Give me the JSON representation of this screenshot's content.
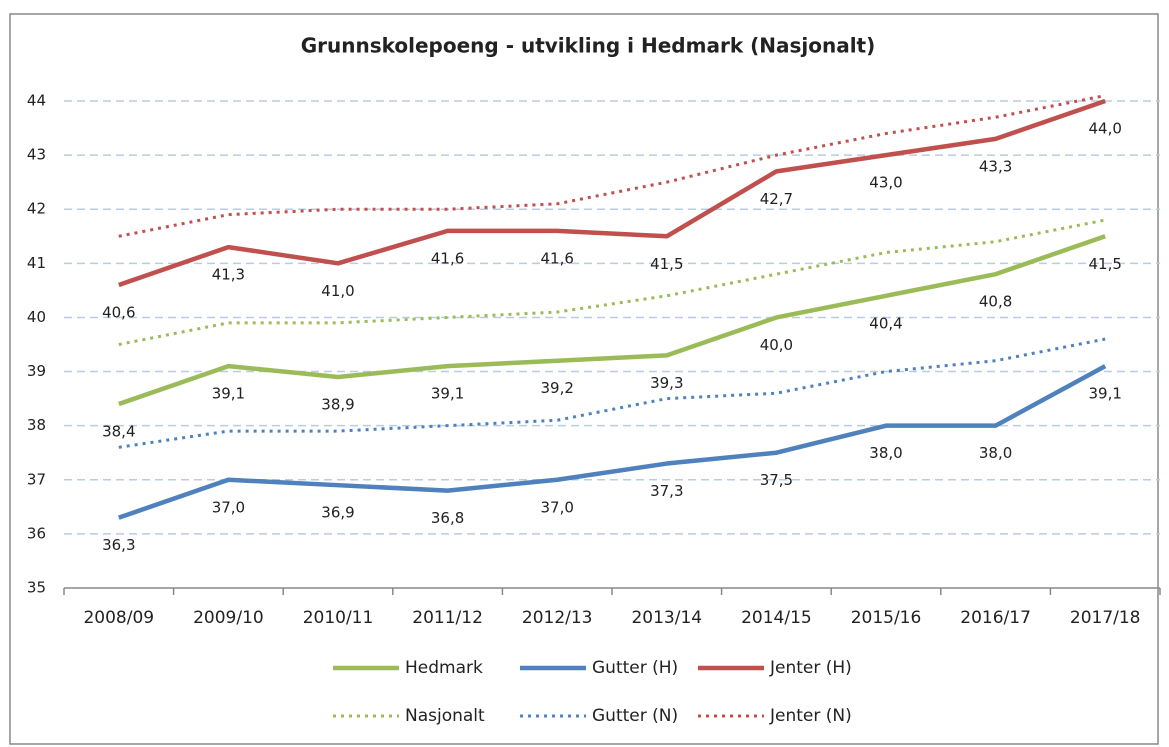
{
  "chart_data": {
    "type": "line",
    "title": "Grunnskolepoeng - utvikling i Hedmark (Nasjonalt)",
    "categories": [
      "2008/09",
      "2009/10",
      "2010/11",
      "2011/12",
      "2012/13",
      "2013/14",
      "2014/15",
      "2015/16",
      "2016/17",
      "2017/18"
    ],
    "ylim": [
      35,
      44
    ],
    "yticks": [
      35,
      36,
      37,
      38,
      39,
      40,
      41,
      42,
      43,
      44
    ],
    "grid": true,
    "legend": "bottom",
    "series": [
      {
        "name": "Hedmark",
        "color": "#9bbb59",
        "style": "solid",
        "values": [
          38.4,
          39.1,
          38.9,
          39.1,
          39.2,
          39.3,
          40.0,
          40.4,
          40.8,
          41.5
        ],
        "value_labels": [
          "38,4",
          "39,1",
          "38,9",
          "39,1",
          "39,2",
          "39,3",
          "40,0",
          "40,4",
          "40,8",
          "41,5"
        ]
      },
      {
        "name": "Gutter (H)",
        "color": "#4f81bd",
        "style": "solid",
        "values": [
          36.3,
          37.0,
          36.9,
          36.8,
          37.0,
          37.3,
          37.5,
          38.0,
          38.0,
          39.1
        ],
        "value_labels": [
          "36,3",
          "37,0",
          "36,9",
          "36,8",
          "37,0",
          "37,3",
          "37,5",
          "38,0",
          "38,0",
          "39,1"
        ]
      },
      {
        "name": "Jenter (H)",
        "color": "#c0504d",
        "style": "solid",
        "values": [
          40.6,
          41.3,
          41.0,
          41.6,
          41.6,
          41.5,
          42.7,
          43.0,
          43.3,
          44.0
        ],
        "value_labels": [
          "40,6",
          "41,3",
          "41,0",
          "41,6",
          "41,6",
          "41,5",
          "42,7",
          "43,0",
          "43,3",
          "44,0"
        ]
      },
      {
        "name": "Nasjonalt",
        "color": "#9bbb59",
        "style": "dotted",
        "values": [
          39.5,
          39.9,
          39.9,
          40.0,
          40.1,
          40.4,
          40.8,
          41.2,
          41.4,
          41.8
        ]
      },
      {
        "name": "Gutter (N)",
        "color": "#4f81bd",
        "style": "dotted",
        "values": [
          37.6,
          37.9,
          37.9,
          38.0,
          38.1,
          38.5,
          38.6,
          39.0,
          39.2,
          39.6
        ]
      },
      {
        "name": "Jenter (N)",
        "color": "#c0504d",
        "style": "dotted",
        "values": [
          41.5,
          41.9,
          42.0,
          42.0,
          42.1,
          42.5,
          43.0,
          43.4,
          43.7,
          44.1
        ]
      }
    ]
  }
}
